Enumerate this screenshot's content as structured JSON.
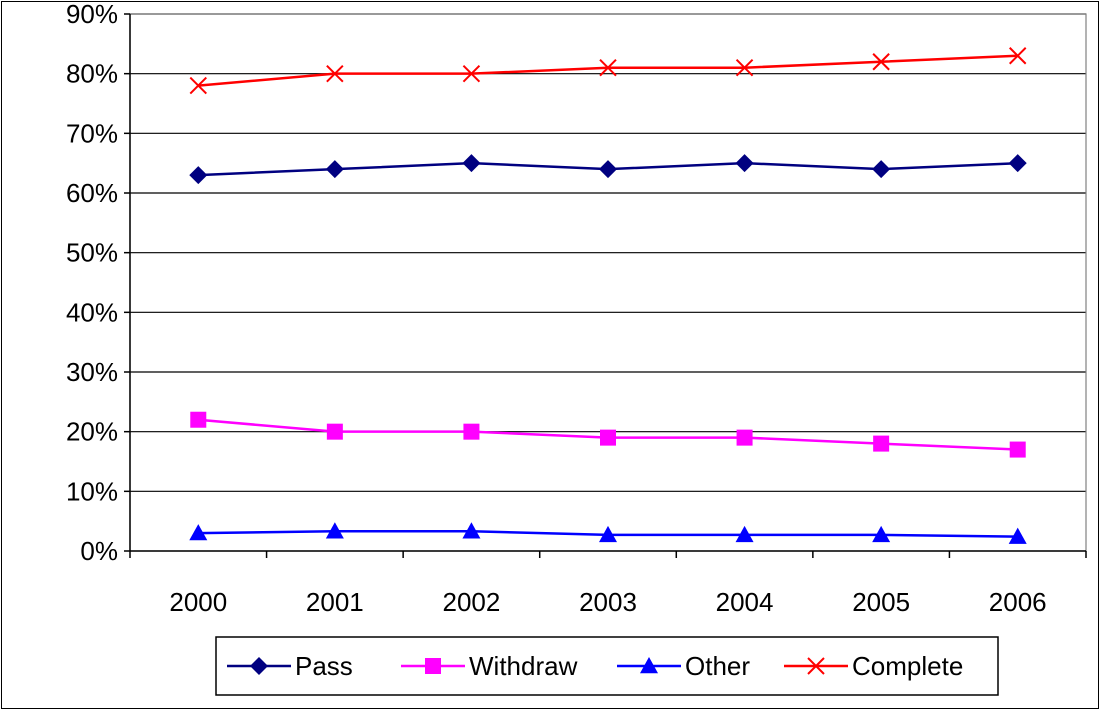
{
  "chart_data": {
    "type": "line",
    "title": "",
    "xlabel": "",
    "ylabel": "",
    "categories": [
      "2000",
      "2001",
      "2002",
      "2003",
      "2004",
      "2005",
      "2006"
    ],
    "ylim": [
      0,
      90
    ],
    "yticks": [
      0,
      10,
      20,
      30,
      40,
      50,
      60,
      70,
      80,
      90
    ],
    "ytick_labels": [
      "0%",
      "10%",
      "20%",
      "30%",
      "40%",
      "50%",
      "60%",
      "70%",
      "80%",
      "90%"
    ],
    "grid": "horizontal",
    "legend_position": "bottom",
    "series": [
      {
        "name": "Pass",
        "values": [
          63,
          64,
          65,
          64,
          65,
          64,
          65
        ],
        "color": "#000080",
        "marker": "diamond"
      },
      {
        "name": "Withdraw",
        "values": [
          22,
          20,
          20,
          19,
          19,
          18,
          17
        ],
        "color": "#ff00ff",
        "marker": "square"
      },
      {
        "name": "Other",
        "values": [
          3,
          3.3,
          3.3,
          2.7,
          2.7,
          2.7,
          2.4
        ],
        "color": "#0000ff",
        "marker": "triangle"
      },
      {
        "name": "Complete",
        "values": [
          78,
          80,
          80,
          81,
          81,
          82,
          83
        ],
        "color": "#ff0000",
        "marker": "x"
      }
    ]
  }
}
